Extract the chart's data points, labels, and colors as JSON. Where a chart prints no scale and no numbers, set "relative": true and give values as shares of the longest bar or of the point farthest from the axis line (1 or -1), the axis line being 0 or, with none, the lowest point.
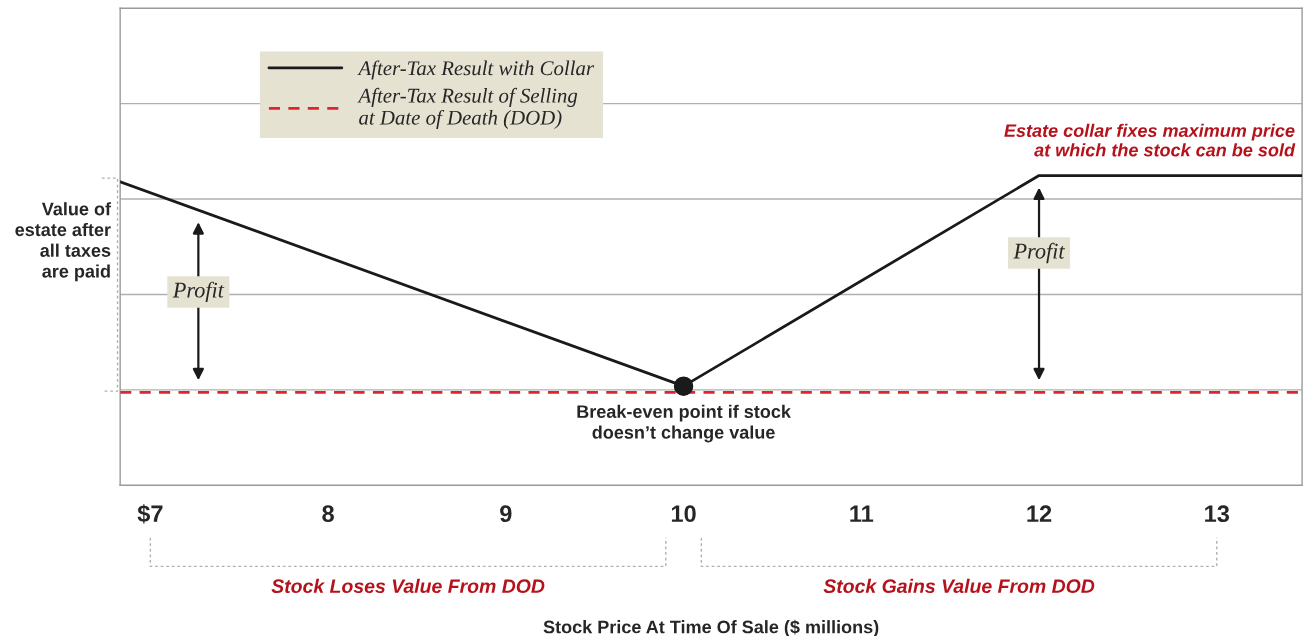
{
  "chart_data": {
    "type": "line",
    "relative": true,
    "ylabel": "Value of\nestate after\nall taxes\nare paid",
    "xlim": [
      6.83,
      13.48
    ],
    "xticks": [
      {
        "value": 7,
        "label": "$7"
      },
      8,
      9,
      10,
      11,
      12,
      13
    ],
    "series": [
      {
        "name": "After-Tax Result with Collar",
        "color": "#1a1a1a",
        "line_style": "solid",
        "x": [
          6.83,
          10,
          12,
          13.48
        ],
        "values": [
          0.98,
          0.32,
          1.0,
          1.0
        ]
      },
      {
        "name": "After-Tax Result of Selling\nat Date of Death (DOD)",
        "color": "#e0242c",
        "line_style": "dashed",
        "x": [
          6.83,
          13.48
        ],
        "values": [
          0.3,
          0.3
        ]
      }
    ],
    "annotations": [
      "Profit",
      "Profit",
      "Estate collar fixes maximum price\nat which the stock can be sold",
      {
        "text": "Break-even point if stock\ndoesn’t change value",
        "x": 10,
        "y": 0.32
      },
      "Stock Loses Value From DOD",
      "Stock Gains Value From DOD",
      "Stock Price At Time Of Sale ($ millions)"
    ],
    "grid": "y",
    "legend": "top left"
  }
}
